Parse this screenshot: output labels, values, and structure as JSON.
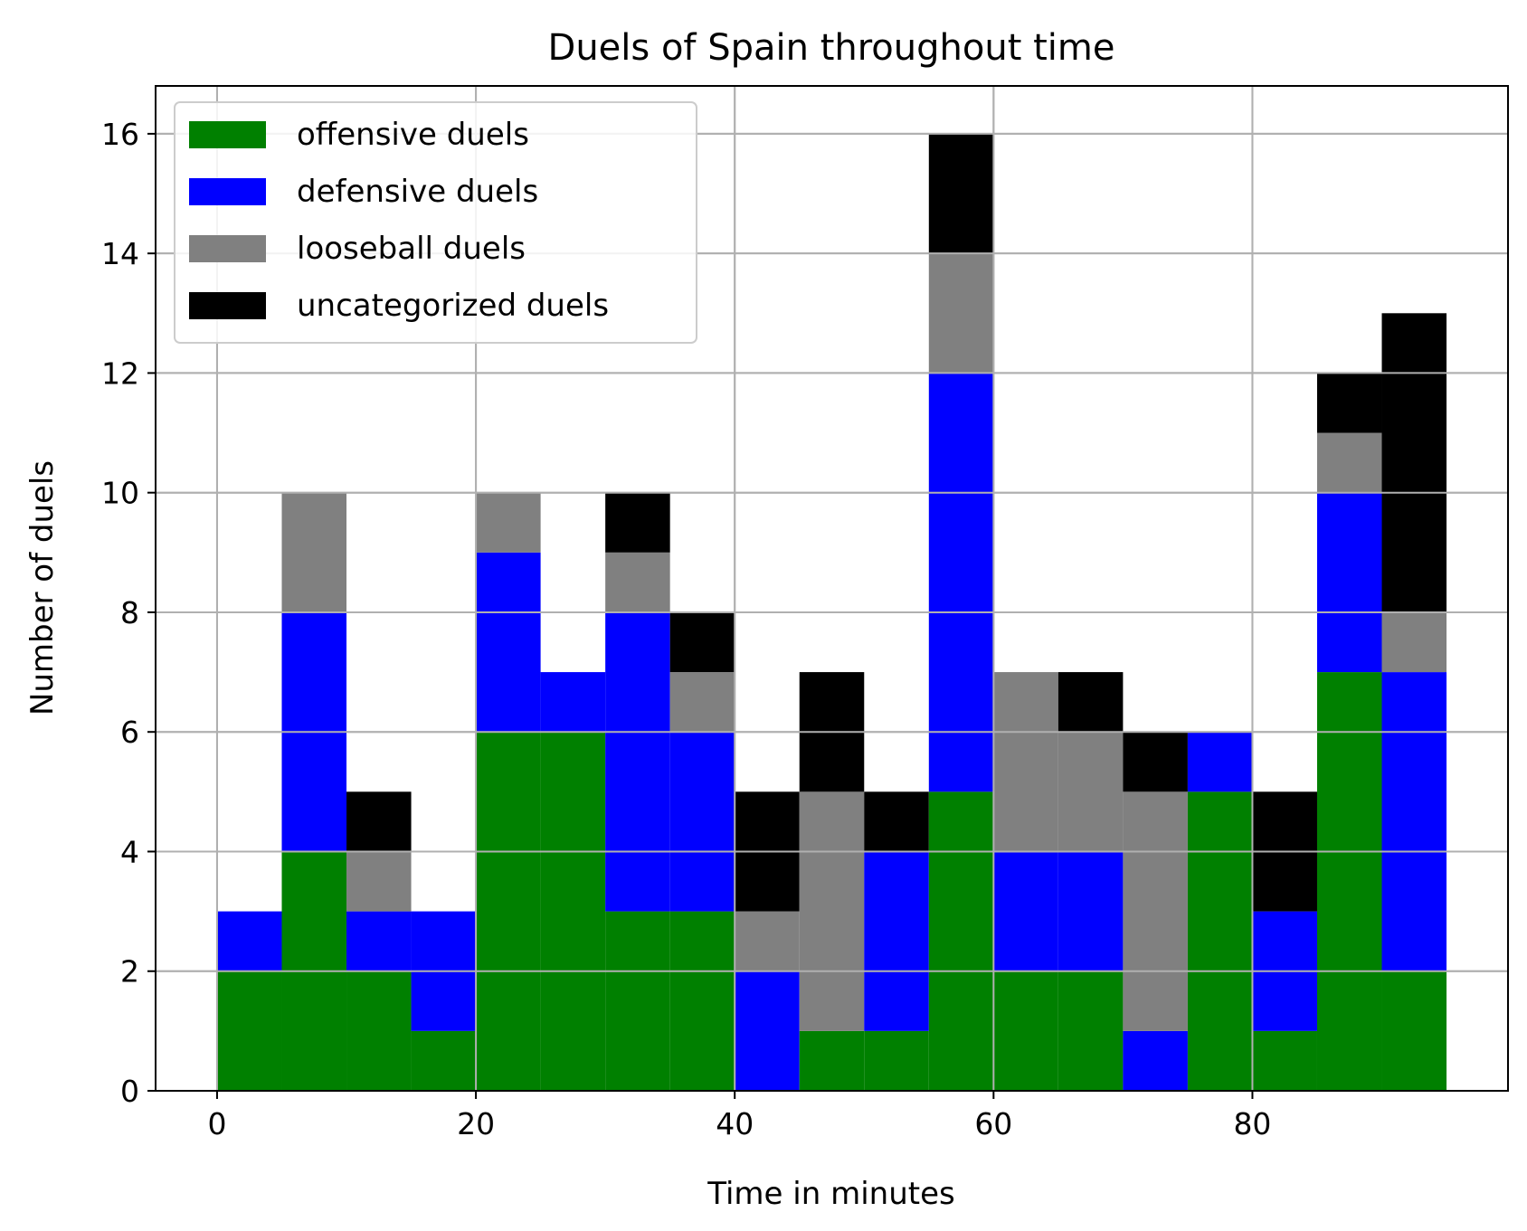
{
  "chart_data": {
    "type": "bar",
    "stacked": true,
    "title": "Duels of Spain throughout time",
    "xlabel": "Time in minutes",
    "ylabel": "Number of duels",
    "bin_width": 5,
    "bin_starts": [
      0,
      5,
      10,
      15,
      20,
      25,
      30,
      35,
      40,
      45,
      50,
      55,
      60,
      65,
      70,
      75,
      80,
      85,
      90
    ],
    "xlim": [
      -4.75,
      99.75
    ],
    "ylim": [
      0,
      16.8
    ],
    "xticks": [
      0,
      20,
      40,
      60,
      80
    ],
    "yticks": [
      0,
      2,
      4,
      6,
      8,
      10,
      12,
      14,
      16
    ],
    "grid": true,
    "legend_position": "top-left",
    "series": [
      {
        "name": "offensive duels",
        "color": "#008000",
        "values": [
          2,
          4,
          2,
          1,
          6,
          6,
          3,
          3,
          0,
          1,
          1,
          5,
          2,
          2,
          0,
          5,
          1,
          7,
          2
        ]
      },
      {
        "name": "defensive duels",
        "color": "#0000ff",
        "values": [
          1,
          4,
          1,
          2,
          3,
          1,
          5,
          3,
          2,
          0,
          3,
          7,
          2,
          2,
          1,
          1,
          2,
          3,
          5
        ]
      },
      {
        "name": "looseball duels",
        "color": "#808080",
        "values": [
          0,
          2,
          1,
          0,
          1,
          0,
          1,
          1,
          1,
          4,
          0,
          2,
          3,
          2,
          4,
          0,
          0,
          1,
          1
        ]
      },
      {
        "name": "uncategorized duels",
        "color": "#000000",
        "values": [
          0,
          0,
          1,
          0,
          0,
          0,
          1,
          1,
          2,
          2,
          1,
          2,
          0,
          1,
          1,
          0,
          2,
          1,
          5
        ]
      }
    ]
  }
}
